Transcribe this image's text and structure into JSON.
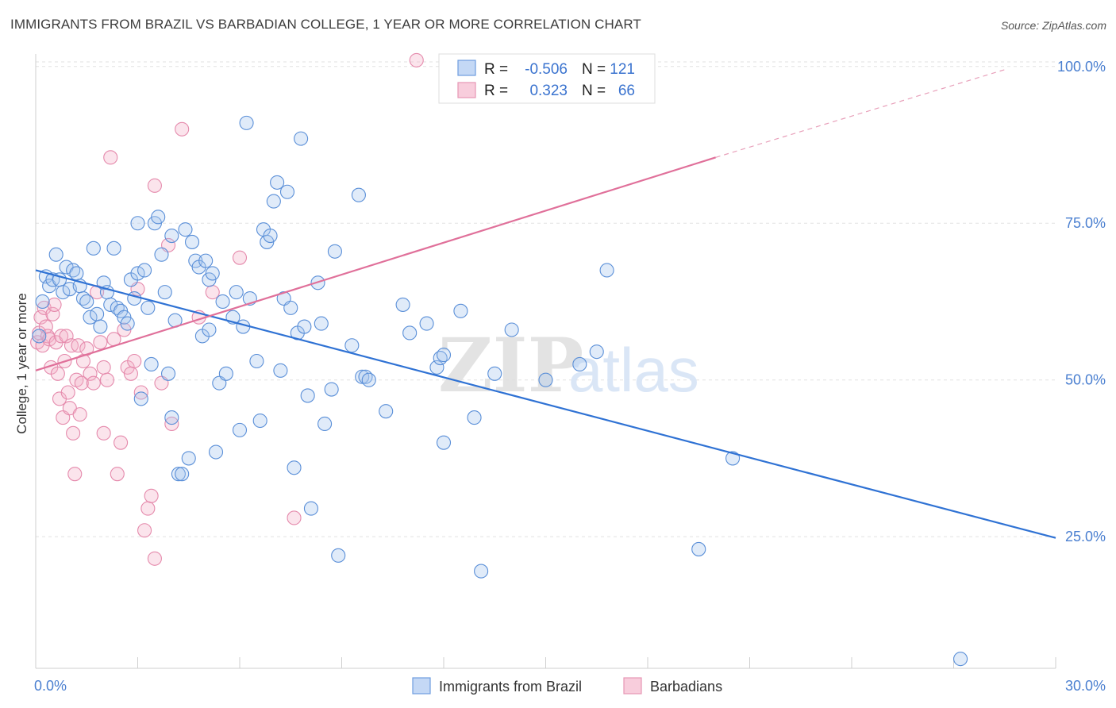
{
  "title": "IMMIGRANTS FROM BRAZIL VS BARBADIAN COLLEGE, 1 YEAR OR MORE CORRELATION CHART",
  "source": "Source: ZipAtlas.com",
  "watermark": {
    "zip": "ZIP",
    "atlas": "atlas"
  },
  "colors": {
    "blue": "#4a86d8",
    "blue_line": "#2f72d4",
    "pink": "#e888aa",
    "pink_line": "#e0709a"
  },
  "stats": {
    "r_label": "R =",
    "n_label": "N =",
    "blue": {
      "r": "-0.506",
      "n": "121"
    },
    "pink": {
      "r": "0.323",
      "n": "66"
    }
  },
  "legend": {
    "blue": "Immigrants from Brazil",
    "pink": "Barbadians"
  },
  "chart_data": {
    "type": "scatter",
    "ylabel": "College, 1 year or more",
    "xlim": [
      0,
      30
    ],
    "ylim": [
      4,
      102
    ],
    "x_tick_labels": [
      {
        "v": 0,
        "t": "0.0%"
      },
      {
        "v": 30,
        "t": "30.0%"
      }
    ],
    "y_tick_labels": [
      {
        "v": 25,
        "t": "25.0%"
      },
      {
        "v": 50,
        "t": "50.0%"
      },
      {
        "v": 75,
        "t": "75.0%"
      },
      {
        "v": 100,
        "t": "100.0%"
      }
    ],
    "grid": true,
    "legend_position": "bottom-center",
    "series": [
      {
        "name": "Immigrants from Brazil",
        "trend": {
          "x0": 0,
          "y0": 67.5,
          "x1": 30,
          "y1": 24.8
        },
        "points": [
          [
            0.1,
            57
          ],
          [
            0.2,
            62.5
          ],
          [
            0.3,
            66.5
          ],
          [
            0.4,
            65
          ],
          [
            0.5,
            66
          ],
          [
            0.6,
            70
          ],
          [
            0.7,
            66
          ],
          [
            0.8,
            64
          ],
          [
            0.9,
            68
          ],
          [
            1.0,
            64.5
          ],
          [
            1.1,
            67.5
          ],
          [
            1.2,
            67
          ],
          [
            1.3,
            65
          ],
          [
            1.4,
            63
          ],
          [
            1.5,
            62.5
          ],
          [
            1.6,
            60
          ],
          [
            1.7,
            71
          ],
          [
            1.8,
            60.5
          ],
          [
            1.9,
            58.5
          ],
          [
            2.0,
            65.5
          ],
          [
            2.1,
            64
          ],
          [
            2.2,
            62
          ],
          [
            2.3,
            71
          ],
          [
            2.4,
            61.5
          ],
          [
            2.5,
            61
          ],
          [
            2.6,
            60
          ],
          [
            2.7,
            59
          ],
          [
            2.8,
            66
          ],
          [
            2.9,
            63
          ],
          [
            3.0,
            67
          ],
          [
            3.0,
            75
          ],
          [
            3.1,
            47
          ],
          [
            3.2,
            67.5
          ],
          [
            3.3,
            61.5
          ],
          [
            3.4,
            52.5
          ],
          [
            3.5,
            75
          ],
          [
            3.6,
            76
          ],
          [
            3.7,
            70
          ],
          [
            3.8,
            64
          ],
          [
            3.9,
            51
          ],
          [
            4.0,
            73
          ],
          [
            4.0,
            44
          ],
          [
            4.1,
            59.5
          ],
          [
            4.2,
            35
          ],
          [
            4.3,
            35
          ],
          [
            4.4,
            74
          ],
          [
            4.5,
            37.5
          ],
          [
            4.6,
            72
          ],
          [
            4.7,
            69
          ],
          [
            4.8,
            68
          ],
          [
            4.9,
            57
          ],
          [
            5.0,
            69
          ],
          [
            5.1,
            66
          ],
          [
            5.1,
            58
          ],
          [
            5.2,
            67
          ],
          [
            5.3,
            38.5
          ],
          [
            5.4,
            49.5
          ],
          [
            5.5,
            62.5
          ],
          [
            5.6,
            51
          ],
          [
            5.8,
            60
          ],
          [
            5.9,
            64
          ],
          [
            6.0,
            42
          ],
          [
            6.1,
            58.5
          ],
          [
            6.2,
            91
          ],
          [
            6.3,
            63
          ],
          [
            6.5,
            53
          ],
          [
            6.6,
            43.5
          ],
          [
            6.7,
            74
          ],
          [
            6.8,
            72
          ],
          [
            6.9,
            73
          ],
          [
            7.0,
            78.5
          ],
          [
            7.1,
            81.5
          ],
          [
            7.2,
            51.5
          ],
          [
            7.3,
            63
          ],
          [
            7.4,
            80
          ],
          [
            7.5,
            61.5
          ],
          [
            7.6,
            36
          ],
          [
            7.7,
            57.5
          ],
          [
            7.8,
            88.5
          ],
          [
            7.9,
            58.5
          ],
          [
            8.0,
            47.5
          ],
          [
            8.1,
            29.5
          ],
          [
            8.3,
            65.5
          ],
          [
            8.4,
            59
          ],
          [
            8.5,
            43
          ],
          [
            8.7,
            48.5
          ],
          [
            8.8,
            70.5
          ],
          [
            8.9,
            22
          ],
          [
            9.3,
            55.5
          ],
          [
            9.5,
            79.5
          ],
          [
            9.6,
            50.5
          ],
          [
            9.7,
            50.5
          ],
          [
            9.8,
            50
          ],
          [
            10.3,
            45
          ],
          [
            10.8,
            62
          ],
          [
            11.0,
            57.5
          ],
          [
            11.5,
            59
          ],
          [
            11.8,
            52
          ],
          [
            11.9,
            53.5
          ],
          [
            12.0,
            54
          ],
          [
            12.0,
            40
          ],
          [
            12.5,
            61
          ],
          [
            12.9,
            44
          ],
          [
            13.1,
            19.5
          ],
          [
            13.5,
            51
          ],
          [
            14.0,
            58
          ],
          [
            15.0,
            50
          ],
          [
            16.0,
            52.5
          ],
          [
            16.5,
            54.5
          ],
          [
            16.8,
            67.5
          ],
          [
            19.5,
            23
          ],
          [
            20.5,
            37.5
          ],
          [
            27.2,
            5.5
          ]
        ]
      },
      {
        "name": "Barbadians",
        "trend": {
          "x0": 0,
          "y0": 51.5,
          "x1": 20,
          "y1": 85.5
        },
        "trend_ext": {
          "x0": 20,
          "y0": 85.5,
          "x1": 28.5,
          "y1": 99.5
        },
        "points": [
          [
            0.05,
            56
          ],
          [
            0.1,
            57.5
          ],
          [
            0.15,
            60
          ],
          [
            0.2,
            55.5
          ],
          [
            0.25,
            61.5
          ],
          [
            0.3,
            58.5
          ],
          [
            0.35,
            57
          ],
          [
            0.4,
            56.5
          ],
          [
            0.45,
            52
          ],
          [
            0.5,
            60.5
          ],
          [
            0.55,
            62
          ],
          [
            0.6,
            56
          ],
          [
            0.65,
            51
          ],
          [
            0.7,
            47
          ],
          [
            0.75,
            57
          ],
          [
            0.8,
            44
          ],
          [
            0.85,
            53
          ],
          [
            0.9,
            57
          ],
          [
            0.95,
            48
          ],
          [
            1.0,
            45.5
          ],
          [
            1.05,
            55.5
          ],
          [
            1.1,
            41.5
          ],
          [
            1.15,
            35
          ],
          [
            1.2,
            50
          ],
          [
            1.25,
            55.5
          ],
          [
            1.3,
            44.5
          ],
          [
            1.35,
            49.5
          ],
          [
            1.4,
            53
          ],
          [
            1.5,
            55
          ],
          [
            1.6,
            51
          ],
          [
            1.7,
            49.5
          ],
          [
            1.8,
            64
          ],
          [
            1.9,
            56
          ],
          [
            2.0,
            52
          ],
          [
            2.0,
            41.5
          ],
          [
            2.1,
            50
          ],
          [
            2.2,
            85.5
          ],
          [
            2.3,
            56.5
          ],
          [
            2.4,
            35
          ],
          [
            2.5,
            40
          ],
          [
            2.6,
            58
          ],
          [
            2.7,
            52
          ],
          [
            2.8,
            51
          ],
          [
            2.9,
            53
          ],
          [
            3.0,
            64.5
          ],
          [
            3.1,
            48
          ],
          [
            3.2,
            26
          ],
          [
            3.3,
            29.5
          ],
          [
            3.4,
            31.5
          ],
          [
            3.5,
            81
          ],
          [
            3.5,
            21.5
          ],
          [
            3.7,
            49.5
          ],
          [
            3.9,
            71.5
          ],
          [
            4.0,
            43
          ],
          [
            4.3,
            90
          ],
          [
            4.8,
            60
          ],
          [
            5.2,
            64
          ],
          [
            6.0,
            69.5
          ],
          [
            7.6,
            28
          ],
          [
            11.2,
            101
          ]
        ]
      }
    ]
  }
}
